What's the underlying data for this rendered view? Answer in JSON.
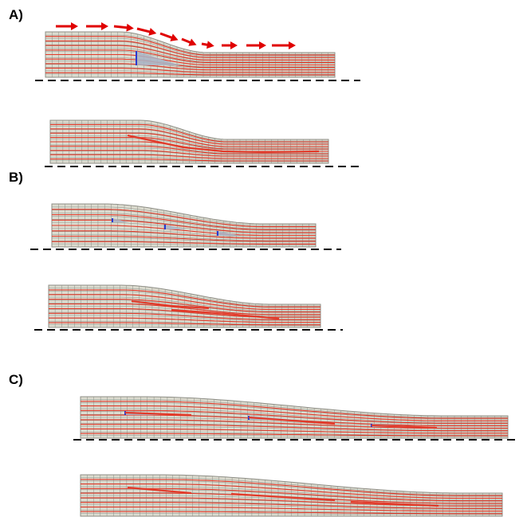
{
  "panels": [
    {
      "label": "A)"
    },
    {
      "label": "B)"
    },
    {
      "label": "C)"
    }
  ],
  "colors": {
    "mesh_fill": "#dcdcd0",
    "mesh_line": "#8e8e86",
    "layer_line": "#e23a2a",
    "arrow": "#e00000",
    "inclusion_fill": "#a9b4c6",
    "inclusion_edge": "#2a3ad0",
    "baseline": "#000000"
  },
  "icons": [
    "velocity-arrow-icon"
  ]
}
